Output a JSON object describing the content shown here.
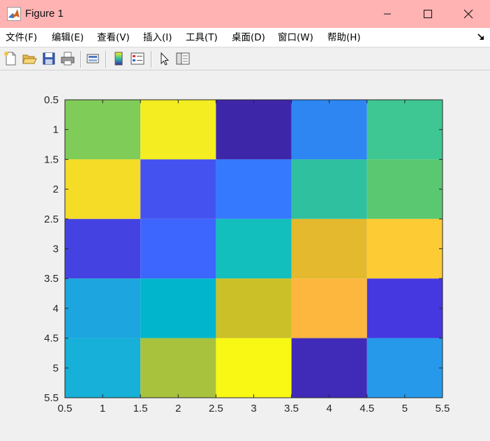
{
  "window": {
    "title": "Figure 1",
    "app_icon": "matlab-icon",
    "controls": [
      "minimize-icon",
      "maximize-icon",
      "close-icon"
    ]
  },
  "menu": {
    "items": [
      "文件(F)",
      "编辑(E)",
      "查看(V)",
      "插入(I)",
      "工具(T)",
      "桌面(D)",
      "窗口(W)",
      "帮助(H)"
    ],
    "corner_icon": "dock-arrow-icon"
  },
  "toolbar": {
    "buttons": [
      "new-figure-icon",
      "open-file-icon",
      "save-icon",
      "print-icon",
      "link-plot-icon",
      "colorbar-icon",
      "legend-icon",
      "edit-plot-icon",
      "property-inspector-icon"
    ]
  },
  "chart_data": {
    "type": "heatmap",
    "colormap": "parula",
    "xlim": [
      0.5,
      5.5
    ],
    "ylim": [
      0.5,
      5.5
    ],
    "y_direction": "reverse",
    "xticks": [
      "0.5",
      "1",
      "1.5",
      "2",
      "2.5",
      "3",
      "3.5",
      "4",
      "4.5",
      "5",
      "5.5"
    ],
    "yticks": [
      "0.5",
      "1",
      "1.5",
      "2",
      "2.5",
      "3",
      "3.5",
      "4",
      "4.5",
      "5",
      "5.5"
    ],
    "clim": [
      0,
      1
    ],
    "values": [
      [
        0.66,
        0.96,
        0.06,
        0.33,
        0.58
      ],
      [
        0.91,
        0.16,
        0.29,
        0.53,
        0.72
      ],
      [
        0.13,
        0.21,
        0.48,
        0.86,
        0.88
      ],
      [
        0.38,
        0.44,
        0.79,
        0.83,
        0.1
      ],
      [
        0.43,
        0.74,
        1.0,
        0.05,
        0.36
      ]
    ],
    "cell_colors": [
      [
        "#80cc58",
        "#f4ed21",
        "#3e26a9",
        "#2d86f2",
        "#3ec792"
      ],
      [
        "#f4dc27",
        "#4453f0",
        "#3479fe",
        "#2fc0a0",
        "#5ac870"
      ],
      [
        "#4443e2",
        "#3c66fd",
        "#12bfbc",
        "#e4b92e",
        "#fdcb33"
      ],
      [
        "#1ca5de",
        "#01b5cc",
        "#cbc028",
        "#fdb63e",
        "#4638e0"
      ],
      [
        "#16b0d8",
        "#a9c23d",
        "#f8f814",
        "#402bb9",
        "#2699ea"
      ]
    ],
    "title": "",
    "xlabel": "",
    "ylabel": ""
  }
}
